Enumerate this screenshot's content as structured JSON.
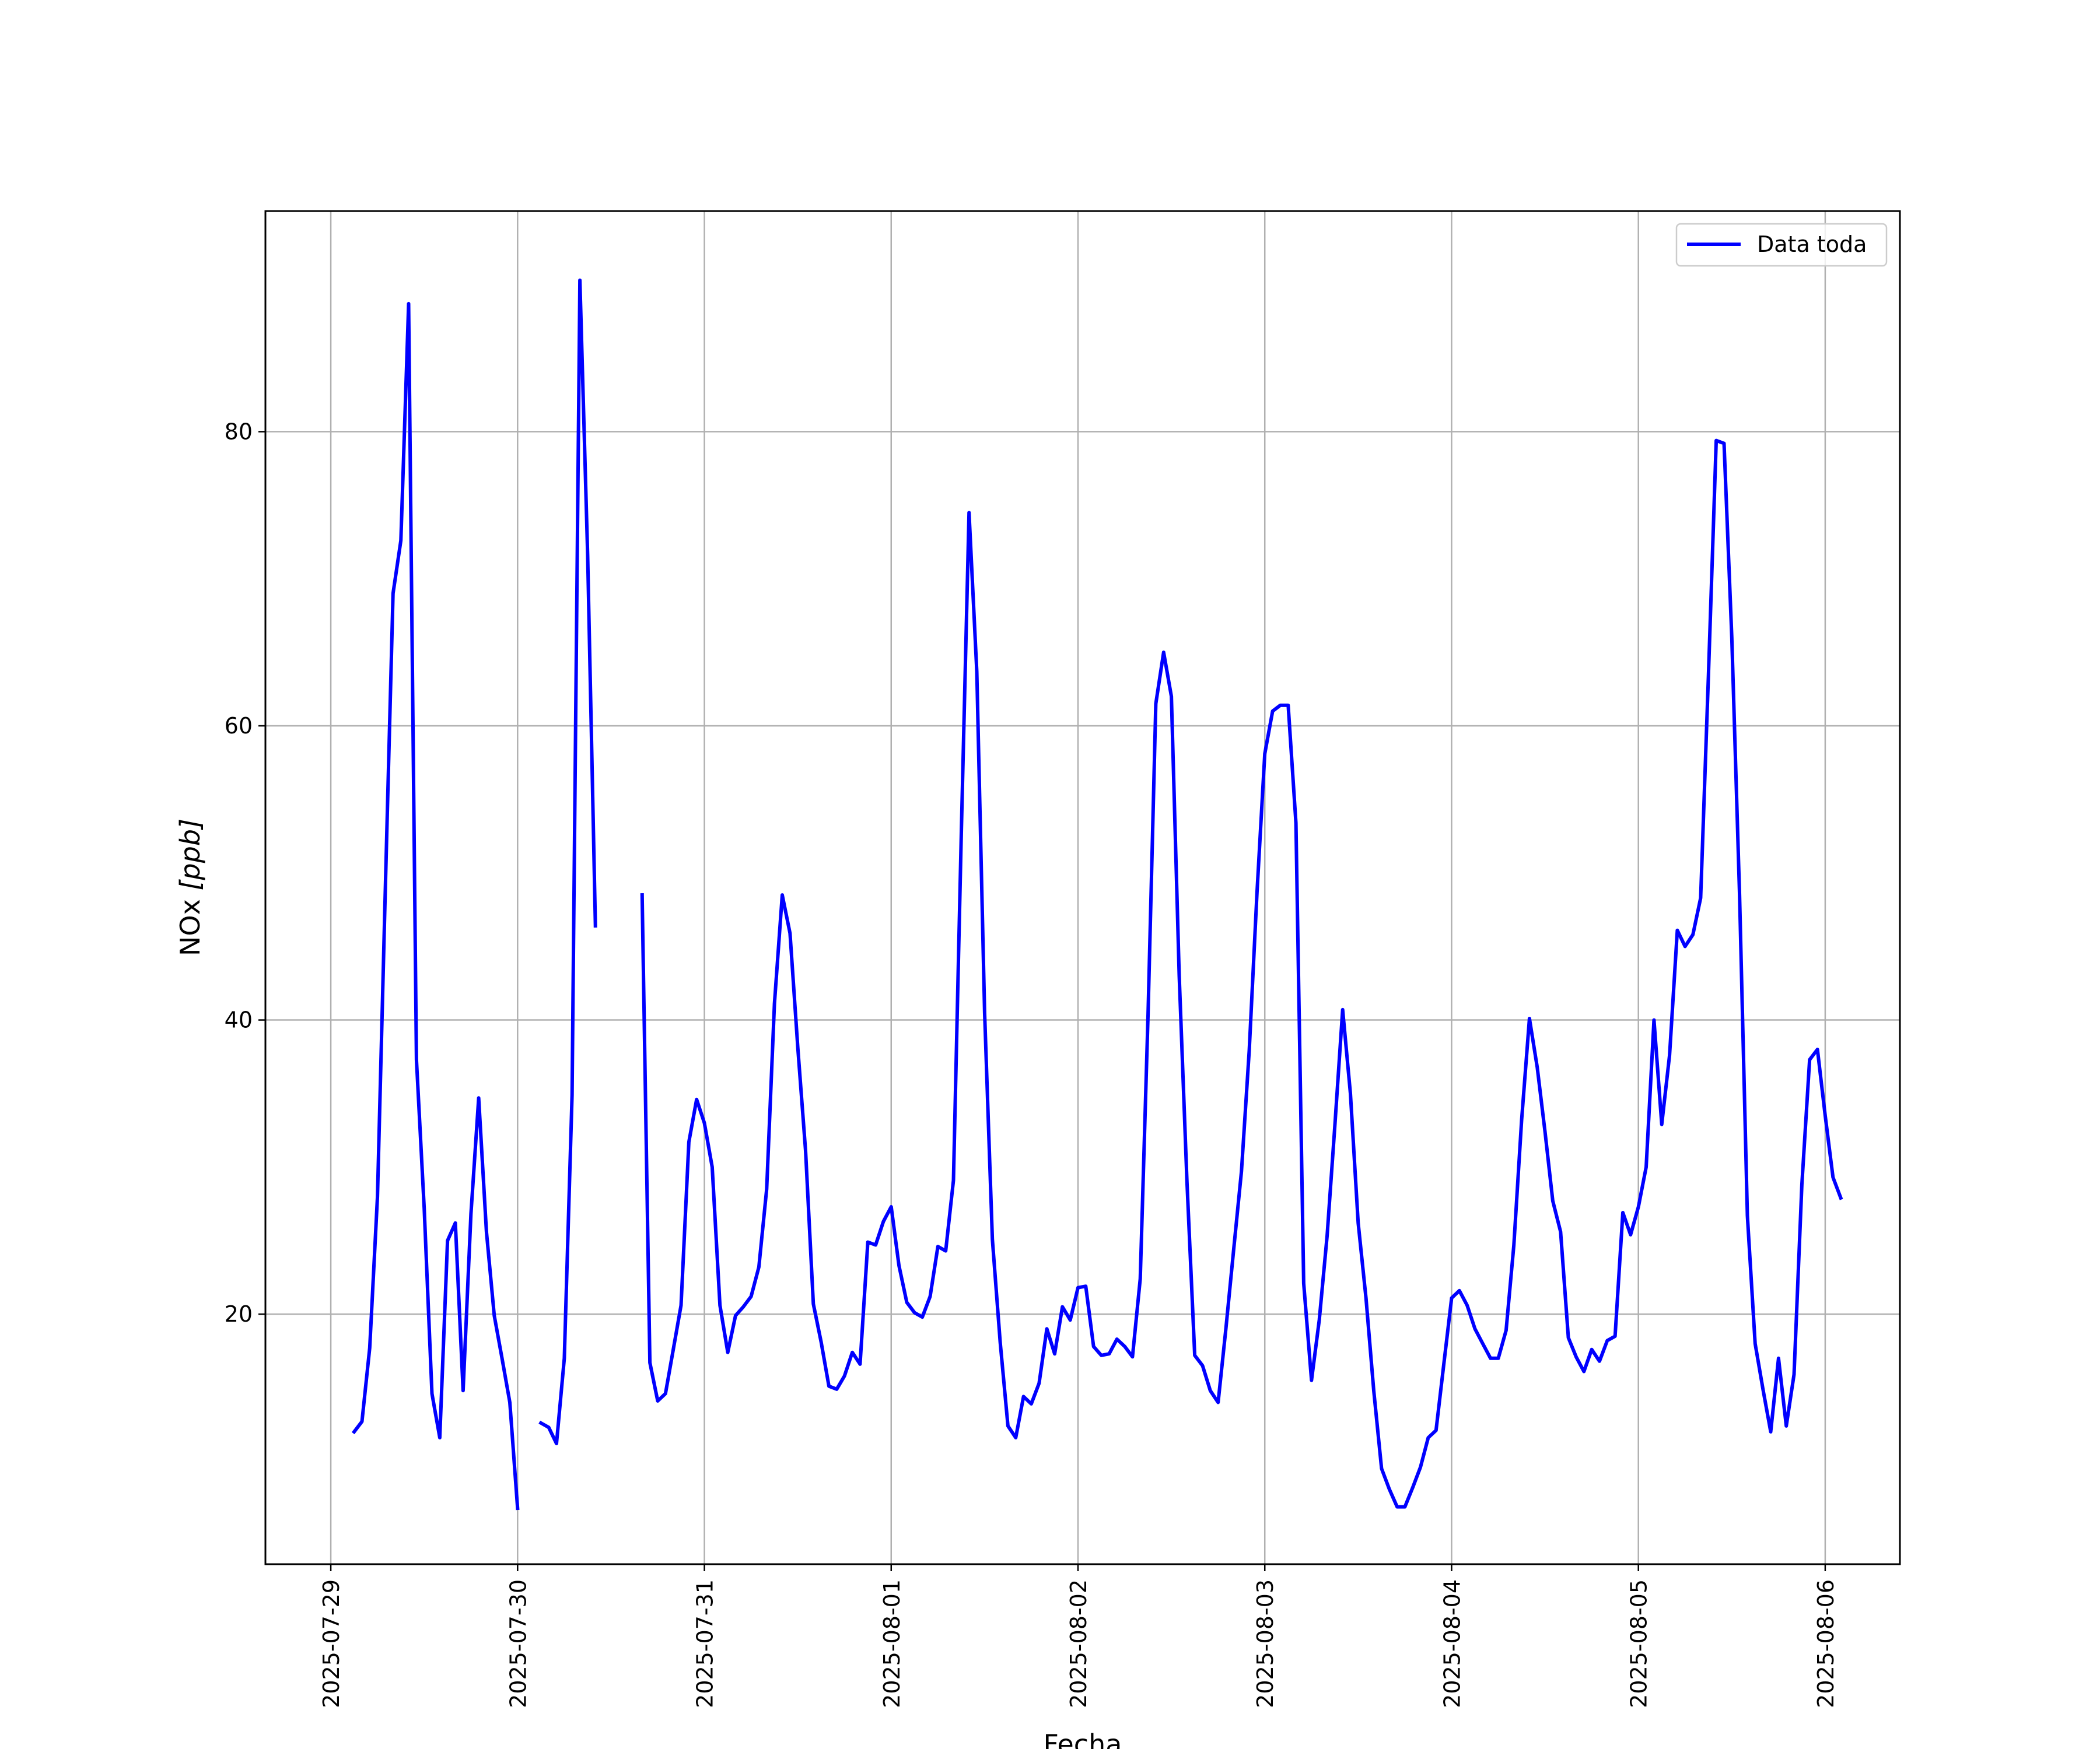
{
  "chart_data": {
    "type": "line",
    "title": "",
    "xlabel": "Fecha",
    "ylabel_main": "NOx ",
    "ylabel_unit": "[ppb]",
    "x_ticks": [
      "2025-07-29",
      "2025-07-30",
      "2025-07-31",
      "2025-08-01",
      "2025-08-02",
      "2025-08-03",
      "2025-08-04",
      "2025-08-05",
      "2025-08-06"
    ],
    "y_ticks": [
      20,
      40,
      60,
      80
    ],
    "xlim_days": [
      -0.35,
      8.4
    ],
    "ylim": [
      3.0,
      95.0
    ],
    "grid": true,
    "legend": "top-right",
    "line_color": "#0000ff",
    "series": [
      {
        "name": "Data toda",
        "x_start": "2025-07-29 03:00",
        "step_hours": 1,
        "values": [
          12,
          12.7,
          17.7,
          28,
          48.8,
          69,
          72.6,
          88.7,
          37.3,
          27.2,
          14.6,
          11.6,
          25,
          26.2,
          14.8,
          26.8,
          34.7,
          25.6,
          19.9,
          17,
          14,
          6.8,
          null,
          null,
          12.6,
          12.3,
          11.2,
          17,
          34.9,
          90.3,
          71.6,
          46.4,
          null,
          null,
          null,
          null,
          null,
          48.5,
          16.7,
          14.1,
          14.6,
          17.6,
          20.6,
          31.7,
          34.6,
          33,
          30,
          20.6,
          17.4,
          19.9,
          20.5,
          21.2,
          23.2,
          28.5,
          41.1,
          48.5,
          45.9,
          38.1,
          31.1,
          20.7,
          18.1,
          15.1,
          14.9,
          15.8,
          17.4,
          16.6,
          24.9,
          24.7,
          26.3,
          27.3,
          23.3,
          20.8,
          20.1,
          19.8,
          21.2,
          24.6,
          24.3,
          29.1,
          52.6,
          74.5,
          63.7,
          40.5,
          25.1,
          18.1,
          12.4,
          11.6,
          14.4,
          13.9,
          15.3,
          19,
          17.3,
          20.5,
          19.6,
          21.8,
          21.9,
          17.8,
          17.2,
          17.3,
          18.3,
          17.8,
          17.1,
          22.4,
          40.4,
          61.5,
          65,
          62,
          43,
          29,
          17.2,
          16.5,
          14.8,
          14,
          19,
          24.4,
          29.7,
          37.9,
          48.7,
          58.1,
          61,
          61.4,
          61.4,
          53.4,
          22.1,
          15.5,
          19.6,
          25.3,
          32.8,
          40.7,
          35,
          26.2,
          21.1,
          14.8,
          9.5,
          8.1,
          6.9,
          6.9,
          8.2,
          9.6,
          11.6,
          12.1,
          16.6,
          21.1,
          21.6,
          20.6,
          19,
          18,
          17,
          17,
          18.9,
          24.7,
          33.2,
          40.1,
          36.8,
          32.4,
          27.7,
          25.6,
          18.4,
          17.1,
          16.1,
          17.6,
          16.8,
          18.2,
          18.5,
          26.9,
          25.4,
          27.3,
          30,
          40,
          32.9,
          37.6,
          46.1,
          45,
          45.8,
          48.3,
          63.5,
          79.4,
          79.2,
          66,
          48.5,
          26.7,
          18,
          14.9,
          12,
          17,
          12.4,
          15.9,
          28.8,
          37.3,
          38,
          33.5,
          29.3,
          27.9
        ]
      }
    ]
  }
}
